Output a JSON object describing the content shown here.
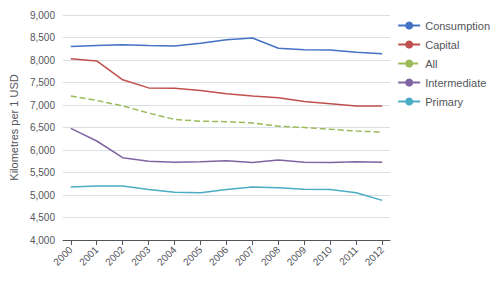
{
  "chart_data": {
    "type": "line",
    "x": [
      2000,
      2001,
      2002,
      2003,
      2004,
      2005,
      2006,
      2007,
      2008,
      2009,
      2010,
      2011,
      2012
    ],
    "xlim": [
      1999.7,
      2012.3
    ],
    "xticks": [
      2000,
      2001,
      2002,
      2003,
      2004,
      2005,
      2006,
      2007,
      2008,
      2009,
      2010,
      2011,
      2012
    ],
    "ylabel": "Kilometres per 1 USD",
    "ylim": [
      4000,
      9000
    ],
    "yticks": [
      {
        "value": 4000,
        "label": "4,000"
      },
      {
        "value": 4500,
        "label": "4,500"
      },
      {
        "value": 5000,
        "label": "5,000"
      },
      {
        "value": 5500,
        "label": "5,500"
      },
      {
        "value": 6000,
        "label": "6,000"
      },
      {
        "value": 6500,
        "label": "6,500"
      },
      {
        "value": 7000,
        "label": "7,000"
      },
      {
        "value": 7500,
        "label": "7,500"
      },
      {
        "value": 8000,
        "label": "8,000"
      },
      {
        "value": 8500,
        "label": "8,500"
      },
      {
        "value": 9000,
        "label": "9,000"
      }
    ],
    "grid": true,
    "legend": "right",
    "series": [
      {
        "name": "Consumption",
        "color": "#4472C4",
        "line_style": "solid",
        "values": [
          8300,
          8320,
          8340,
          8320,
          8310,
          8370,
          8450,
          8490,
          8260,
          8230,
          8220,
          8170,
          8140
        ]
      },
      {
        "name": "Capital",
        "color": "#C0504D",
        "line_style": "solid",
        "values": [
          8030,
          7980,
          7560,
          7380,
          7370,
          7320,
          7250,
          7200,
          7160,
          7080,
          7030,
          6980,
          6980
        ]
      },
      {
        "name": "All",
        "color": "#9BBB59",
        "line_style": "dashed",
        "values": [
          7200,
          7100,
          6980,
          6820,
          6680,
          6640,
          6630,
          6600,
          6530,
          6500,
          6460,
          6420,
          6400
        ]
      },
      {
        "name": "Intermediate",
        "color": "#8064A2",
        "line_style": "solid",
        "values": [
          6480,
          6200,
          5830,
          5750,
          5730,
          5740,
          5760,
          5720,
          5780,
          5730,
          5720,
          5740,
          5730
        ]
      },
      {
        "name": "Primary",
        "color": "#4BACC6",
        "line_style": "solid",
        "values": [
          5180,
          5200,
          5200,
          5120,
          5060,
          5050,
          5120,
          5180,
          5160,
          5130,
          5120,
          5050,
          4880
        ]
      }
    ]
  }
}
